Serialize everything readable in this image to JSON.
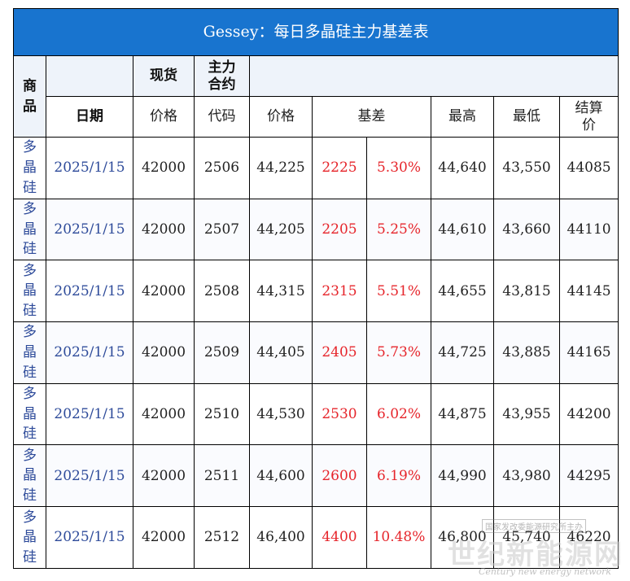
{
  "title": "Gessey：每日多晶硅主力基差表",
  "header": {
    "product": "商品",
    "spot": "现货",
    "main_contract": "主力合约",
    "date": "日期",
    "price": "价格",
    "code": "代码",
    "contract_price": "价格",
    "basis": "基差",
    "high": "最高",
    "low": "最低",
    "settle": "结算价"
  },
  "rows": [
    {
      "product": "多晶硅",
      "date": "2025/1/15",
      "spot": "42000",
      "code": "2506",
      "price": "44,225",
      "basis": "2225",
      "basis_pct": "5.30%",
      "high": "44,640",
      "low": "43,550",
      "settle": "44085"
    },
    {
      "product": "多晶硅",
      "date": "2025/1/15",
      "spot": "42000",
      "code": "2507",
      "price": "44,205",
      "basis": "2205",
      "basis_pct": "5.25%",
      "high": "44,610",
      "low": "43,660",
      "settle": "44110"
    },
    {
      "product": "多晶硅",
      "date": "2025/1/15",
      "spot": "42000",
      "code": "2508",
      "price": "44,315",
      "basis": "2315",
      "basis_pct": "5.51%",
      "high": "44,655",
      "low": "43,815",
      "settle": "44145"
    },
    {
      "product": "多晶硅",
      "date": "2025/1/15",
      "spot": "42000",
      "code": "2509",
      "price": "44,405",
      "basis": "2405",
      "basis_pct": "5.73%",
      "high": "44,725",
      "low": "43,885",
      "settle": "44165"
    },
    {
      "product": "多晶硅",
      "date": "2025/1/15",
      "spot": "42000",
      "code": "2510",
      "price": "44,530",
      "basis": "2530",
      "basis_pct": "6.02%",
      "high": "44,875",
      "low": "43,955",
      "settle": "44200"
    },
    {
      "product": "多晶硅",
      "date": "2025/1/15",
      "spot": "42000",
      "code": "2511",
      "price": "44,600",
      "basis": "2600",
      "basis_pct": "6.19%",
      "high": "44,990",
      "low": "43,980",
      "settle": "44295"
    },
    {
      "product": "多晶硅",
      "date": "2025/1/15",
      "spot": "42000",
      "code": "2512",
      "price": "46,400",
      "basis": "4400",
      "basis_pct": "10.48%",
      "high": "46,800",
      "low": "45,740",
      "settle": "46220"
    }
  ],
  "watermark": {
    "top": "国家发改委能源研究所主办",
    "main": "世纪新能源网",
    "sub": "Century new energy network"
  },
  "colors": {
    "title_bg": "#1874cf",
    "basis_red": "#e6252b",
    "date_blue": "#2e4b9a"
  }
}
